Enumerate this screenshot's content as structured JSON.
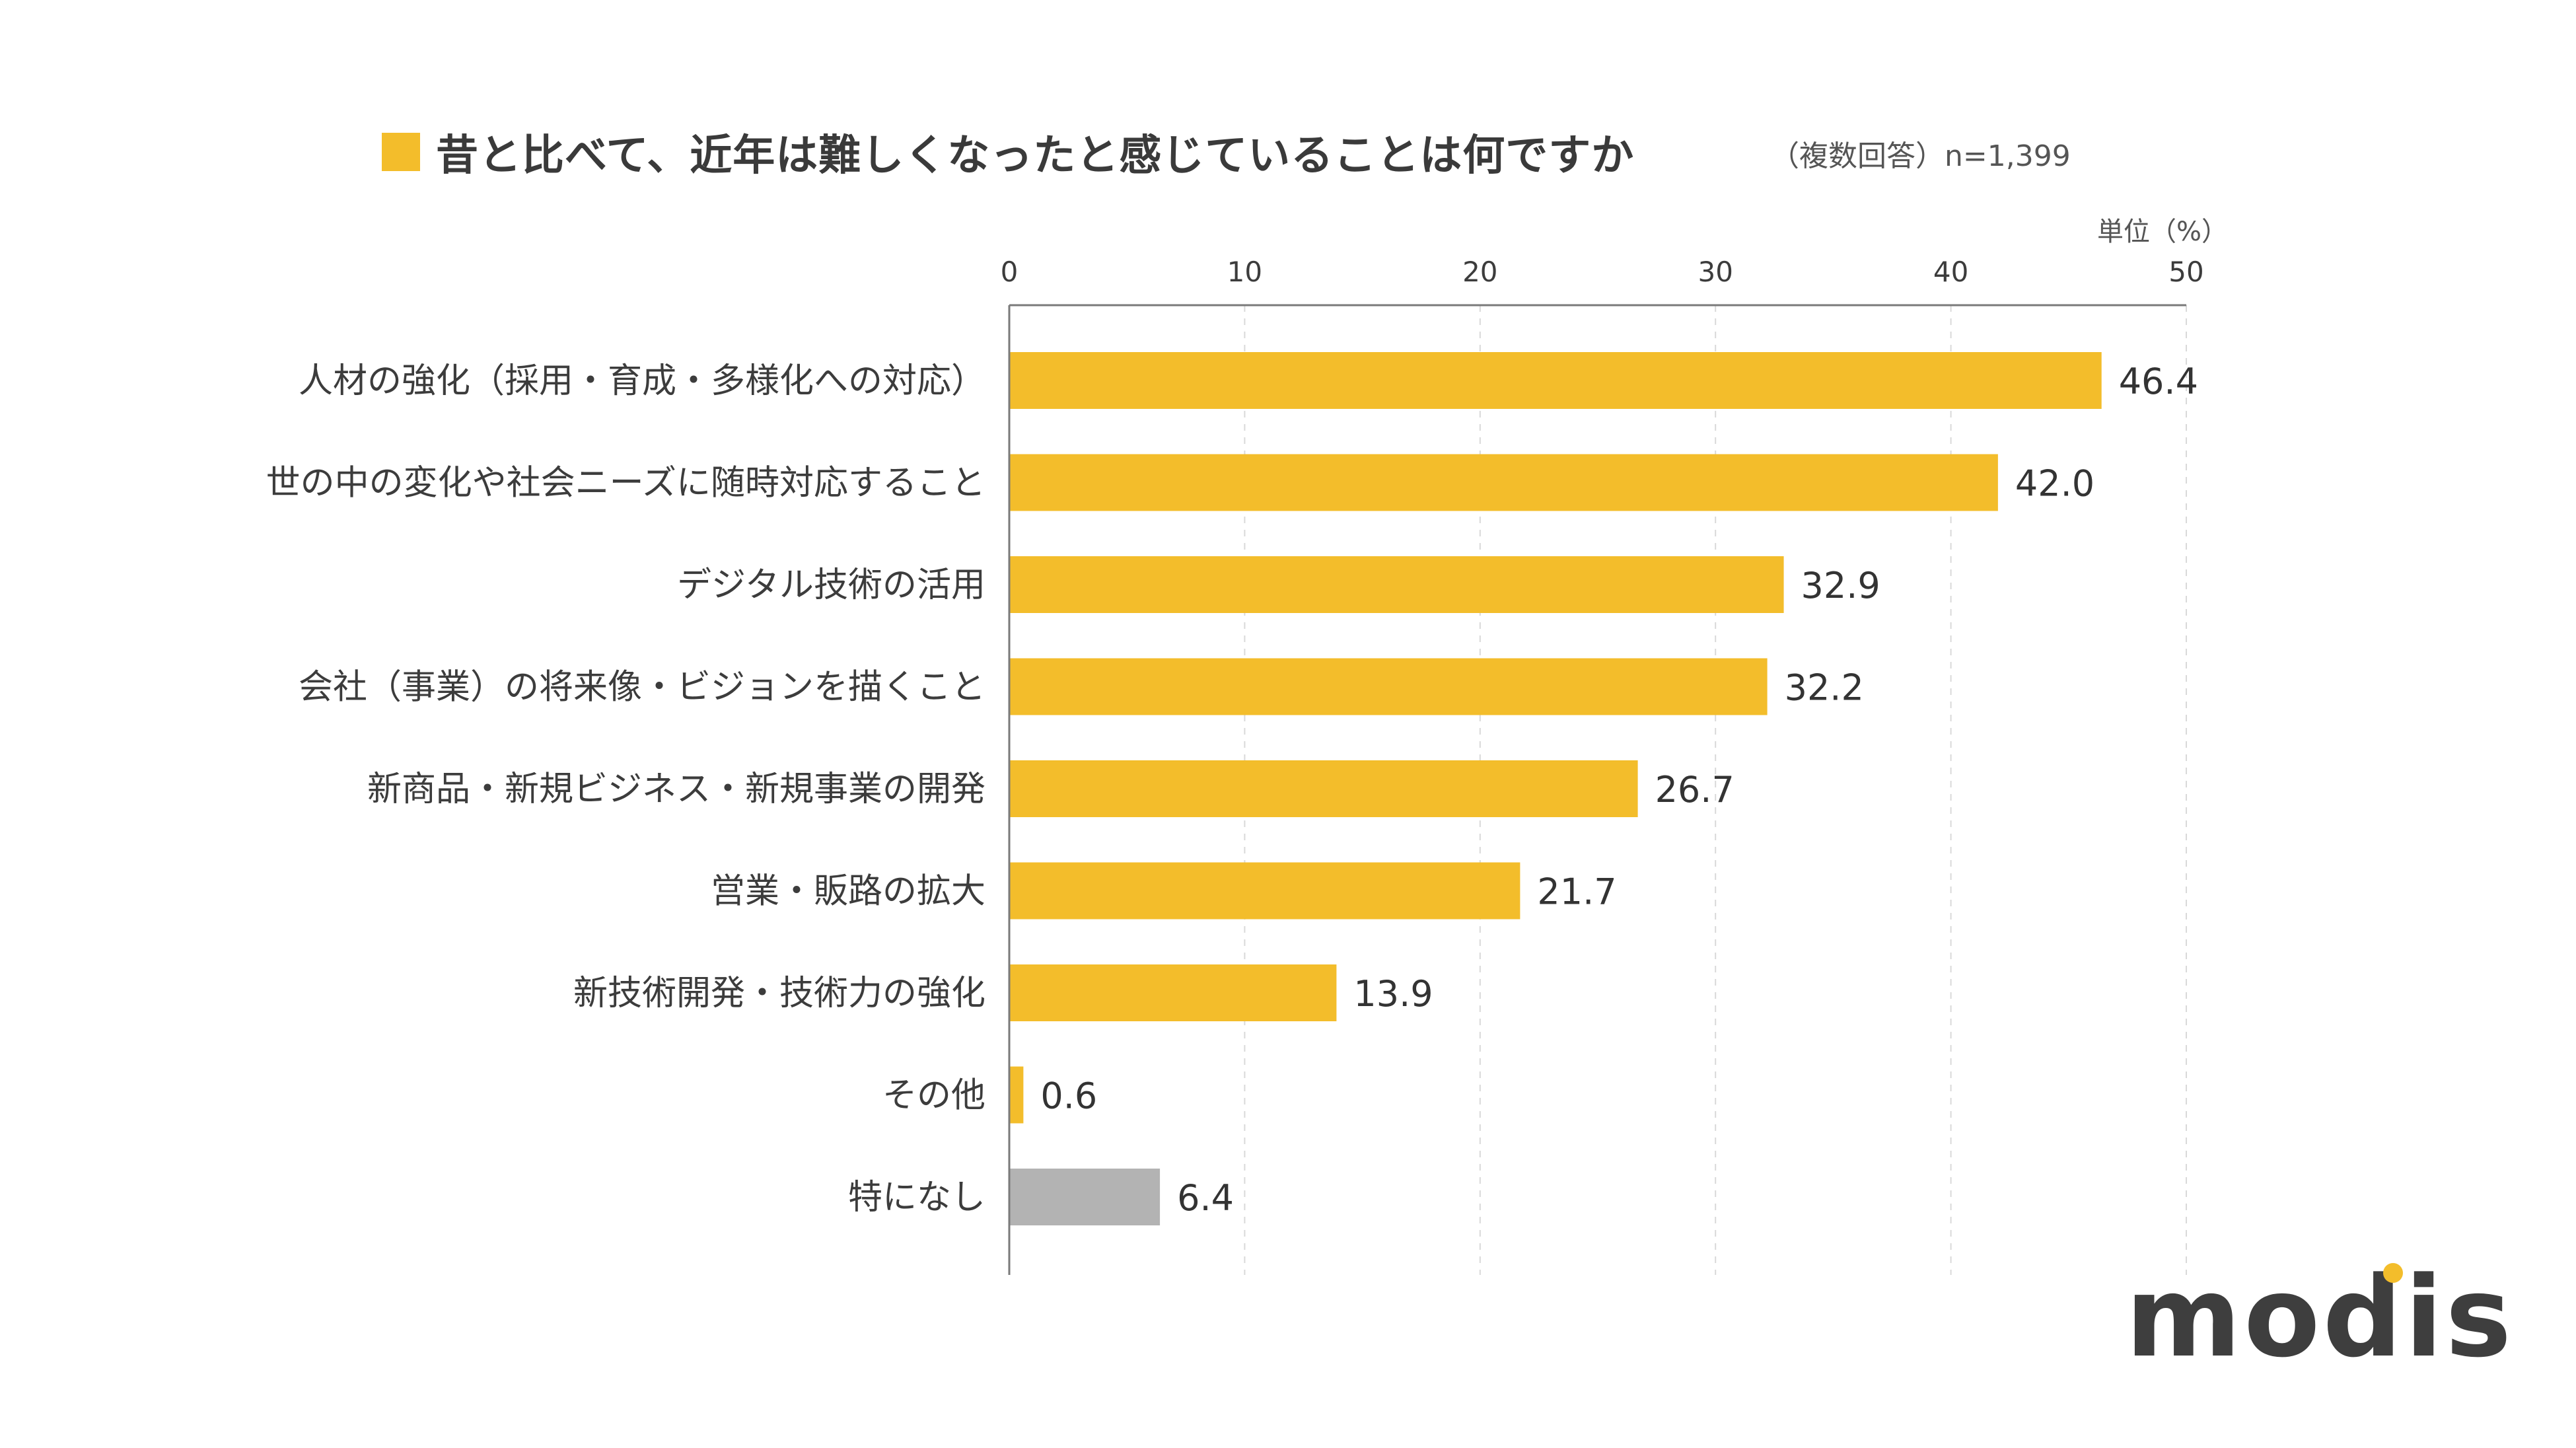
{
  "title": "昔と比べて、近年は難しくなったと感じていることは何ですか",
  "subtitle": "（複数回答）n=1,399",
  "unit_label": "単位（%）",
  "logo_text": "modis",
  "colors": {
    "accent": "#F3BD2B",
    "bar_gray": "#B3B3B3",
    "axis": "#7a7a7a",
    "grid": "#d9d9d9",
    "logo_dot": "#F3BD2B"
  },
  "chart_data": {
    "type": "bar",
    "orientation": "horizontal",
    "categories": [
      "人材の強化（採用・育成・多様化への対応）",
      "世の中の変化や社会ニーズに随時対応すること",
      "デジタル技術の活用",
      "会社（事業）の将来像・ビジョンを描くこと",
      "新商品・新規ビジネス・新規事業の開発",
      "営業・販路の拡大",
      "新技術開発・技術力の強化",
      "その他",
      "特になし"
    ],
    "values": [
      46.4,
      42.0,
      32.9,
      32.2,
      26.7,
      21.7,
      13.9,
      0.6,
      6.4
    ],
    "value_labels": [
      "46.4",
      "42.0",
      "32.9",
      "32.2",
      "26.7",
      "21.7",
      "13.9",
      "0.6",
      "6.4"
    ],
    "bar_colors": [
      "#F3BD2B",
      "#F3BD2B",
      "#F3BD2B",
      "#F3BD2B",
      "#F3BD2B",
      "#F3BD2B",
      "#F3BD2B",
      "#F3BD2B",
      "#B3B3B3"
    ],
    "xlim": [
      0,
      50
    ],
    "xticks": [
      0,
      10,
      20,
      30,
      40,
      50
    ],
    "xtick_labels": [
      "0",
      "10",
      "20",
      "30",
      "40",
      "50"
    ],
    "grid": "vertical-dashed",
    "axis_position": "top"
  }
}
